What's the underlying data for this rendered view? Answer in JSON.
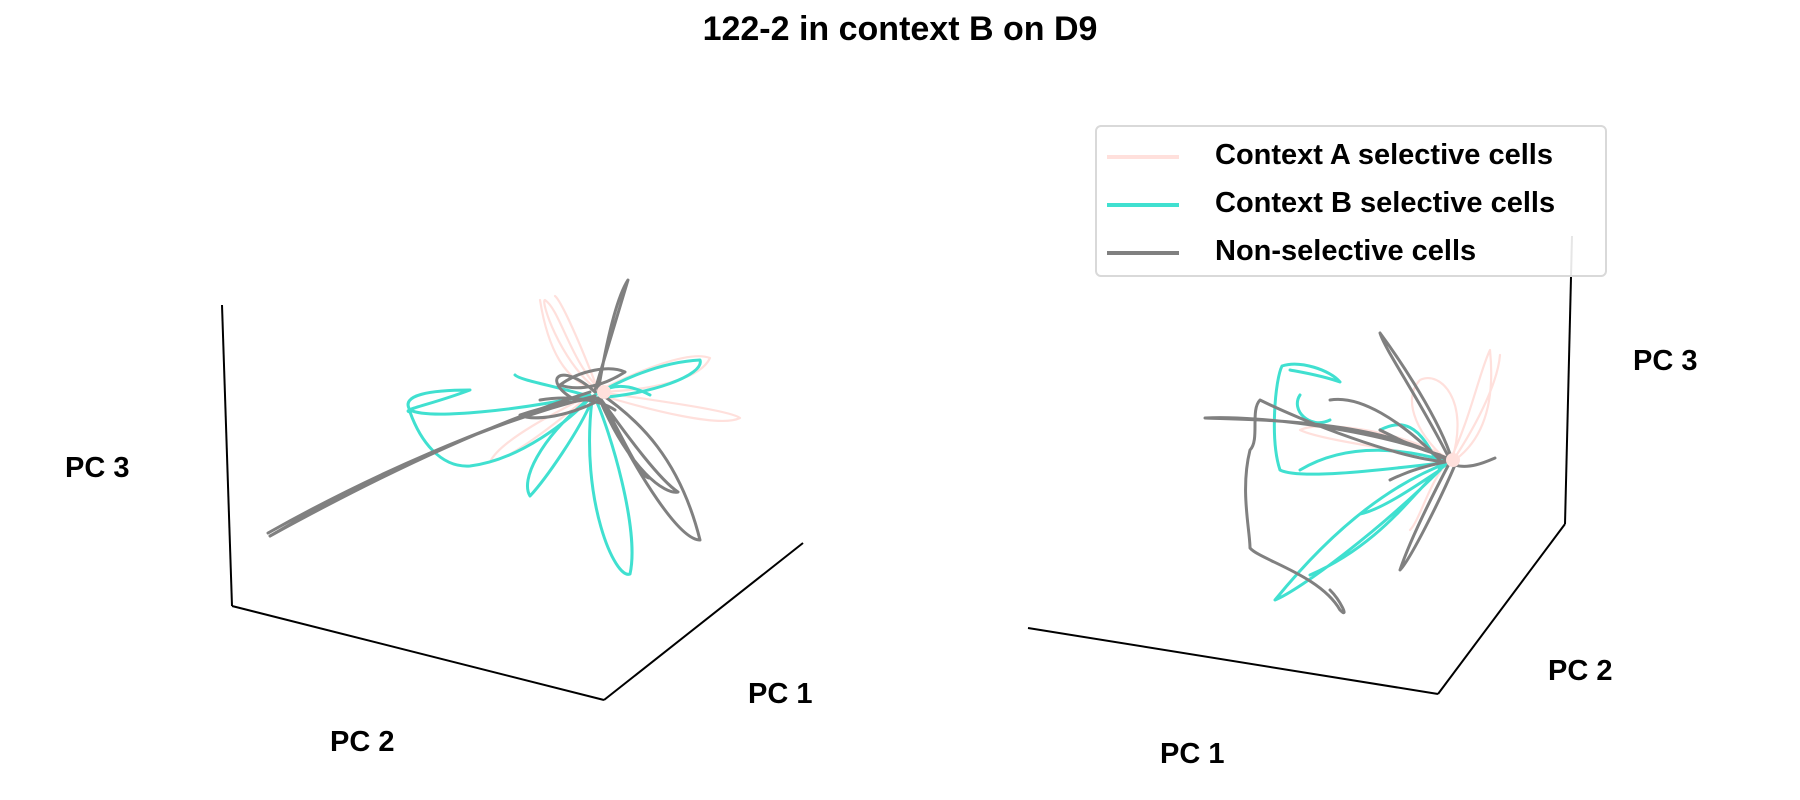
{
  "chart_data": {
    "type": "line",
    "title": "122-2 in context B on D9",
    "panels": [
      {
        "xlabel": "PC 1",
        "ylabel": "PC 2",
        "zlabel": "PC 3"
      },
      {
        "xlabel": "PC 1",
        "ylabel": "PC 2",
        "zlabel": "PC 3"
      }
    ],
    "legend_position": "top-right",
    "series": [
      {
        "name": "Context A selective cells",
        "color": "#ffe0dc"
      },
      {
        "name": "Context B selective cells",
        "color": "#40e0d0"
      },
      {
        "name": "Non-selective cells",
        "color": "#808080"
      }
    ]
  }
}
